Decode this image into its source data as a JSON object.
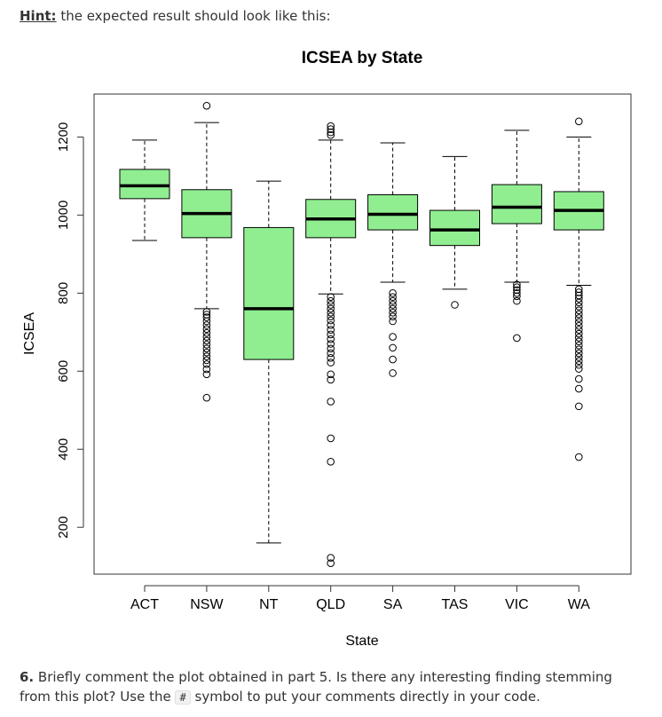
{
  "hint": {
    "label": "Hint:",
    "text": "the expected result should look like this:"
  },
  "chart_data": {
    "type": "boxplot",
    "title": "ICSEA by State",
    "xlabel": "State",
    "ylabel": "ICSEA",
    "ylim": [
      80,
      1310
    ],
    "yticks": [
      200,
      400,
      600,
      800,
      1000,
      1200
    ],
    "box_color": "#90ee90",
    "categories": [
      "ACT",
      "NSW",
      "NT",
      "QLD",
      "SA",
      "TAS",
      "VIC",
      "WA"
    ],
    "boxes": [
      {
        "name": "ACT",
        "whisker_low": 935,
        "q1": 1042,
        "median": 1075,
        "q3": 1117,
        "whisker_high": 1192,
        "outliers": []
      },
      {
        "name": "NSW",
        "whisker_low": 760,
        "q1": 942,
        "median": 1004,
        "q3": 1065,
        "whisker_high": 1237,
        "outliers": [
          1280,
          752,
          745,
          738,
          728,
          718,
          708,
          698,
          688,
          678,
          668,
          658,
          648,
          638,
          628,
          618,
          605,
          592,
          532
        ]
      },
      {
        "name": "NT",
        "whisker_low": 160,
        "q1": 630,
        "median": 760,
        "q3": 968,
        "whisker_high": 1087,
        "outliers": []
      },
      {
        "name": "QLD",
        "whisker_low": 798,
        "q1": 942,
        "median": 990,
        "q3": 1040,
        "whisker_high": 1192,
        "outliers": [
          1228,
          1220,
          1212,
          1205,
          790,
          780,
          770,
          760,
          750,
          740,
          730,
          718,
          706,
          694,
          682,
          670,
          658,
          646,
          634,
          622,
          592,
          578,
          522,
          428,
          368,
          122,
          108
        ]
      },
      {
        "name": "SA",
        "whisker_low": 828,
        "q1": 962,
        "median": 1002,
        "q3": 1052,
        "whisker_high": 1185,
        "outliers": [
          800,
          790,
          780,
          770,
          760,
          750,
          740,
          728,
          688,
          660,
          630,
          595
        ]
      },
      {
        "name": "TAS",
        "whisker_low": 810,
        "q1": 922,
        "median": 962,
        "q3": 1012,
        "whisker_high": 1150,
        "outliers": [
          770
        ]
      },
      {
        "name": "VIC",
        "whisker_low": 828,
        "q1": 978,
        "median": 1020,
        "q3": 1078,
        "whisker_high": 1217,
        "outliers": [
          822,
          815,
          808,
          800,
          792,
          780,
          685
        ]
      },
      {
        "name": "WA",
        "whisker_low": 820,
        "q1": 962,
        "median": 1012,
        "q3": 1060,
        "whisker_high": 1200,
        "outliers": [
          1240,
          810,
          802,
          794,
          786,
          776,
          766,
          756,
          746,
          736,
          726,
          716,
          706,
          696,
          686,
          676,
          666,
          656,
          646,
          636,
          626,
          616,
          606,
          580,
          555,
          510,
          380
        ]
      }
    ]
  },
  "question": {
    "number": "6.",
    "text_before": "Briefly comment the plot obtained in part 5. Is there any interesting finding stemming from this plot? Use the",
    "code": "#",
    "text_after": "symbol to put your comments directly in your code."
  }
}
